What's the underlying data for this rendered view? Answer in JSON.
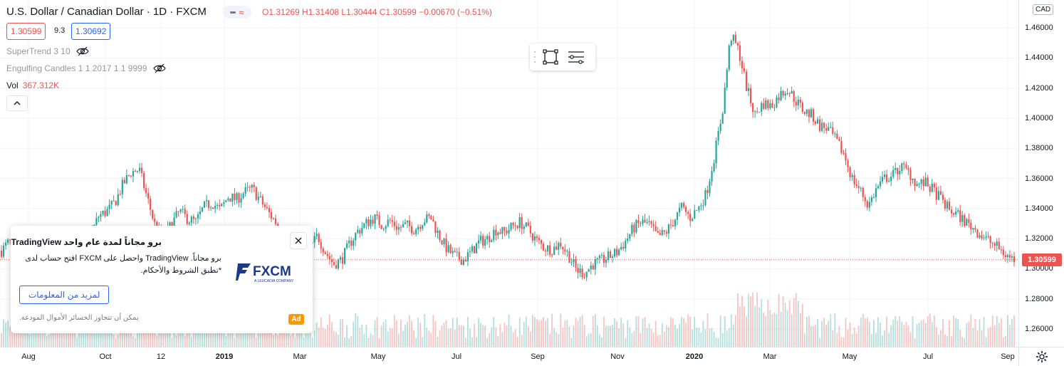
{
  "legend": {
    "title": "U.S. Dollar / Canadian Dollar · 1D · FXCM",
    "ohlc": "O1.31269  H1.31408  L1.30444  C1.30599  −0.00670 (−0.51%)",
    "bid": "1.30599",
    "spread": "9.3",
    "ask": "1.30692",
    "studies": [
      {
        "label": "SuperTrend 3 10"
      },
      {
        "label": "Engulfing Candles 1 1 2017 1 1 9999"
      }
    ],
    "vol_label": "Vol",
    "vol_value": "367.312K"
  },
  "price_axis": {
    "currency": "CAD",
    "ticks": [
      "1.46000",
      "1.44000",
      "1.42000",
      "1.40000",
      "1.38000",
      "1.36000",
      "1.34000",
      "1.32000",
      "1.30000",
      "1.28000",
      "1.26000"
    ],
    "last_price": "1.30599"
  },
  "time_axis": {
    "labels": [
      {
        "text": "Aug",
        "major": false
      },
      {
        "text": "Oct",
        "major": false
      },
      {
        "text": "12",
        "major": false
      },
      {
        "text": "2019",
        "major": true
      },
      {
        "text": "Mar",
        "major": false
      },
      {
        "text": "May",
        "major": false
      },
      {
        "text": "Jul",
        "major": false
      },
      {
        "text": "Sep",
        "major": false
      },
      {
        "text": "Nov",
        "major": false
      },
      {
        "text": "2020",
        "major": true
      },
      {
        "text": "Mar",
        "major": false
      },
      {
        "text": "May",
        "major": false
      },
      {
        "text": "Jul",
        "major": false
      },
      {
        "text": "Sep",
        "major": false
      }
    ]
  },
  "ad": {
    "title": "برو مجاناً لمدة عام واحد TradingView",
    "body": "برو مجاناً. TradingView واحصل على FXCM افتح حساب لدى *تطبق الشروط والأحكام.",
    "cta": "لمزيد من المعلومات",
    "disclaimer": "يمكن أن تتجاوز الخسائر الأموال المودعة.",
    "badge": "Ad",
    "brand": "FXCM",
    "brand_sub": "A LEUCADIA COMPANY"
  },
  "colors": {
    "up": "#26a69a",
    "down": "#ef5350",
    "grid": "#f0f3fa",
    "accent": "#2962ff",
    "ad_badge": "#ff9800"
  },
  "chart_data": {
    "type": "candlestick",
    "symbol": "USDCAD",
    "ylim": [
      1.26,
      1.47
    ],
    "series": [
      {
        "values": [
          1.312,
          1.318,
          1.307,
          1.301,
          1.311,
          1.317,
          1.321,
          1.315,
          1.309,
          1.299,
          1.312,
          1.322,
          1.335,
          1.338,
          1.344,
          1.356,
          1.364,
          1.366,
          1.347,
          1.328,
          1.32,
          1.33,
          1.338,
          1.333,
          1.331,
          1.341,
          1.344,
          1.339,
          1.348,
          1.346,
          1.351,
          1.353,
          1.345,
          1.337,
          1.33,
          1.318,
          1.306,
          1.304,
          1.313,
          1.322,
          1.311,
          1.303,
          1.306,
          1.317,
          1.325,
          1.33,
          1.334,
          1.329,
          1.332,
          1.327,
          1.329,
          1.326,
          1.332,
          1.334,
          1.322,
          1.313,
          1.308,
          1.306,
          1.311,
          1.318,
          1.32,
          1.326,
          1.324,
          1.328,
          1.331,
          1.326,
          1.319,
          1.314,
          1.313,
          1.317,
          1.309,
          1.299,
          1.297,
          1.303,
          1.305,
          1.308,
          1.311,
          1.318,
          1.327,
          1.331,
          1.329,
          1.321,
          1.324,
          1.332,
          1.341,
          1.334,
          1.34,
          1.35,
          1.375,
          1.405,
          1.455,
          1.445,
          1.42,
          1.402,
          1.41,
          1.408,
          1.415,
          1.42,
          1.412,
          1.405,
          1.402,
          1.395,
          1.393,
          1.385,
          1.376,
          1.36,
          1.352,
          1.342,
          1.353,
          1.36,
          1.362,
          1.368,
          1.364,
          1.356,
          1.357,
          1.352,
          1.346,
          1.339,
          1.336,
          1.331,
          1.327,
          1.322,
          1.318,
          1.314,
          1.309,
          1.306
        ]
      }
    ]
  }
}
